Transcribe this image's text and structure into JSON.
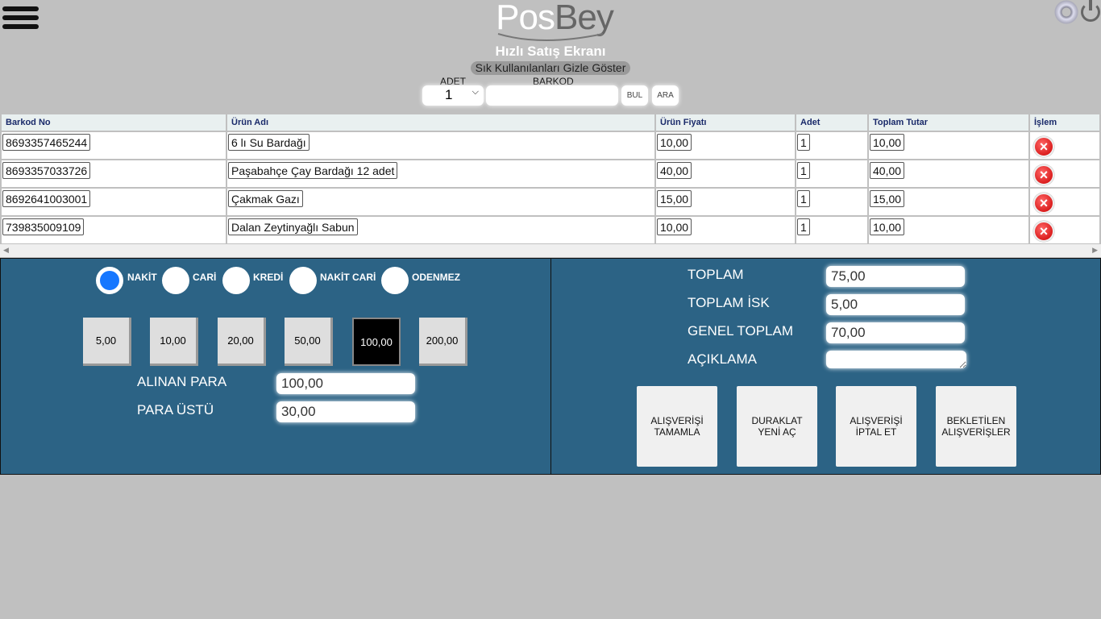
{
  "app": {
    "logo": "PosBey",
    "title": "Hızlı Satış Ekranı",
    "toggle_label": "Sık  Kullanılanları Gizle Göster"
  },
  "icons": {
    "menu": "hamburger-icon",
    "settings": "gear-icon",
    "power": "power-icon",
    "delete": "delete-circle-x-icon"
  },
  "search": {
    "adet_label": "ADET",
    "adet_value": "1",
    "barkod_label": "BARKOD",
    "barkod_value": "",
    "bul": "BUL",
    "ara": "ARA"
  },
  "table": {
    "headers": [
      "Barkod No",
      "Ürün Adı",
      "Ürün Fiyatı",
      "Adet",
      "Toplam Tutar",
      "İşlem"
    ],
    "rows": [
      {
        "barkod": "8693357465244",
        "urun": "6 lı Su Bardağı",
        "fiyat": "10,00",
        "adet": "1",
        "toplam": "10,00"
      },
      {
        "barkod": "8693357033726",
        "urun": "Paşabahçe Çay Bardağı 12 adet",
        "fiyat": "40,00",
        "adet": "1",
        "toplam": "40,00"
      },
      {
        "barkod": "8692641003001",
        "urun": "Çakmak Gazı",
        "fiyat": "15,00",
        "adet": "1",
        "toplam": "15,00"
      },
      {
        "barkod": "739835009109",
        "urun": "Dalan Zeytinyağlı Sabun",
        "fiyat": "10,00",
        "adet": "1",
        "toplam": "10,00"
      }
    ]
  },
  "payment": {
    "types": [
      "NAKİT",
      "CARİ",
      "KREDİ",
      "NAKİT CARİ",
      "ODENMEZ"
    ],
    "selected": "NAKİT",
    "cash_buttons": [
      "5,00",
      "10,00",
      "20,00",
      "50,00",
      "100,00",
      "200,00"
    ],
    "selected_cash": "100,00",
    "alinan_label": "ALINAN PARA",
    "alinan_value": "100,00",
    "paraustu_label": "PARA ÜSTÜ",
    "paraustu_value": "30,00"
  },
  "totals": {
    "toplam_label": "TOPLAM",
    "toplam": "75,00",
    "isk_label": "TOPLAM İSK",
    "isk": "5,00",
    "genel_label": "GENEL TOPLAM",
    "genel": "70,00",
    "aciklama_label": "AÇIKLAMA",
    "aciklama": ""
  },
  "actions": [
    "ALIŞVERİŞİ\nTAMAMLA",
    "DURAKLAT\nYENİ AÇ",
    "ALIŞVERİŞİ\nİPTAL ET",
    "BEKLETİLEN\nALIŞVERİŞLER"
  ],
  "colors": {
    "panel": "#2c6385",
    "selected_radio": "#1677ff",
    "background": "#c0c0c0"
  }
}
